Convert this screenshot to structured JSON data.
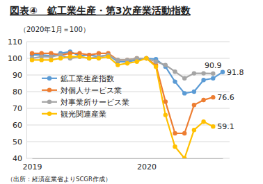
{
  "chart_data": {
    "type": "line",
    "title": "図表④　鉱工業生産・第3次産業活動指数",
    "subtitle": "（2020年1月＝100）",
    "source": "（出所：経済産業省よりSCGR作成）",
    "categories": [
      "2019",
      null,
      null,
      null,
      null,
      null,
      null,
      null,
      null,
      null,
      null,
      null,
      "2020",
      null,
      null,
      null,
      null,
      null,
      null,
      null,
      null
    ],
    "series": [
      {
        "name": "鉱工業生産指数",
        "color": "#5b9bd5",
        "marker": "circle",
        "values": [
          102,
          102,
          101.5,
          103,
          104,
          101.5,
          102,
          101,
          102,
          98,
          98,
          99,
          100,
          99.5,
          95,
          86,
          79,
          80,
          87,
          88,
          91.8
        ]
      },
      {
        "name": "対個人サービス業",
        "color": "#ed7d31",
        "marker": "circle",
        "values": [
          103,
          103,
          103,
          102,
          103,
          103,
          102,
          103,
          103,
          99,
          99,
          100,
          100,
          96,
          74,
          55,
          55,
          72,
          75,
          76.6,
          null
        ]
      },
      {
        "name": "対事業所サービス業",
        "color": "#a5a5a5",
        "marker": "circle",
        "values": [
          100,
          101,
          101,
          102,
          100,
          101,
          100,
          101,
          102,
          99,
          99,
          100,
          100,
          98,
          96,
          92,
          88,
          91,
          91,
          90.9,
          null
        ]
      },
      {
        "name": "観光関連産業",
        "color": "#ffc000",
        "marker": "circle",
        "values": [
          99,
          99,
          99,
          100,
          101,
          101,
          100,
          100,
          101,
          96,
          97,
          98,
          100,
          95,
          66,
          47,
          40,
          57,
          62,
          59.1,
          null
        ]
      }
    ],
    "annotations": [
      {
        "text": "91.8",
        "x": 20,
        "y": 91.8
      },
      {
        "text": "90.9",
        "x": 19,
        "y": 90.9
      },
      {
        "text": "76.6",
        "x": 19,
        "y": 76.6
      },
      {
        "text": "59.1",
        "x": 19,
        "y": 59.1
      }
    ],
    "ylim": [
      40,
      110
    ],
    "yticks": [
      40,
      50,
      60,
      70,
      80,
      90,
      100,
      110
    ],
    "grid": true,
    "legend": "left"
  }
}
